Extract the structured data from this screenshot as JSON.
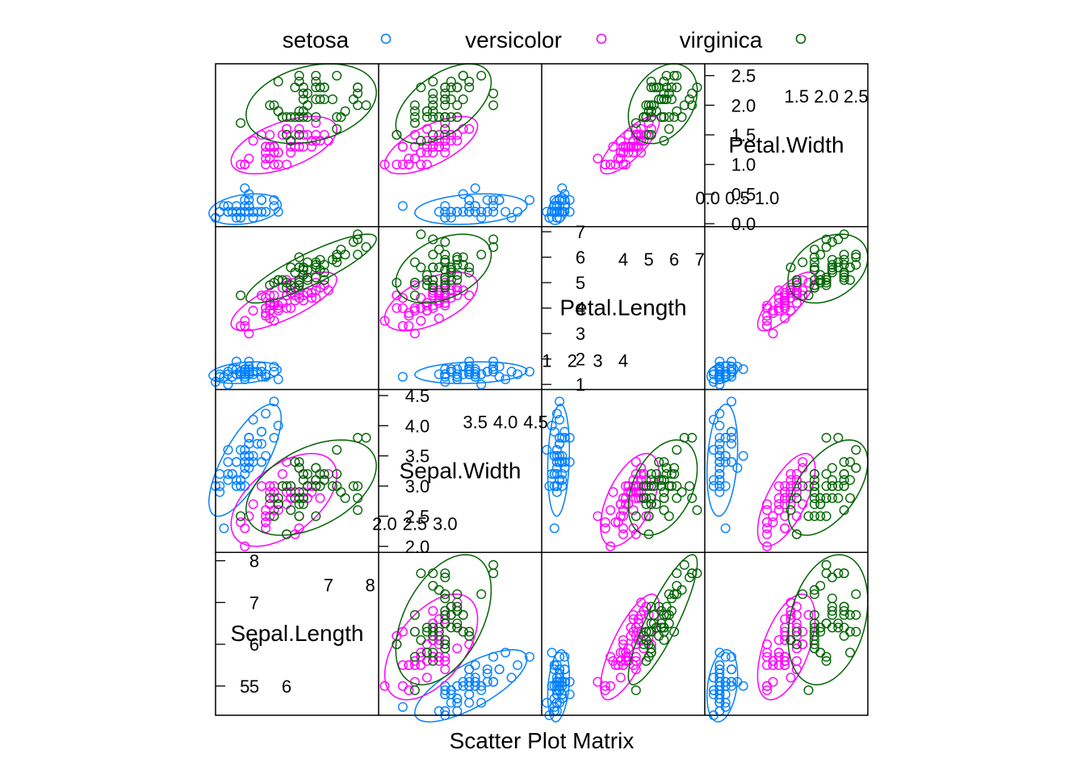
{
  "chart_data": {
    "type": "scatter",
    "subtype": "scatter-plot-matrix",
    "xlabel": "Scatter Plot Matrix",
    "legend_position": "top",
    "ellipses": true,
    "variables": [
      "Sepal.Length",
      "Sepal.Width",
      "Petal.Length",
      "Petal.Width"
    ],
    "diagonal": [
      {
        "name": "Sepal.Length",
        "range": [
          4.3,
          8.2
        ],
        "ticks_low": [
          "5",
          "6"
        ],
        "ticks_high": [
          "7",
          "8"
        ],
        "ticks_left": [
          "5",
          "6",
          "7",
          "8"
        ]
      },
      {
        "name": "Sepal.Width",
        "range": [
          1.9,
          4.6
        ],
        "ticks_low": [
          "2.0",
          "2.5",
          "3.0"
        ],
        "ticks_high": [
          "3.5",
          "4.0",
          "4.5"
        ],
        "ticks_left": [
          "2.0",
          "2.5",
          "3.0",
          "3.5",
          "4.0",
          "4.5"
        ]
      },
      {
        "name": "Petal.Length",
        "range": [
          0.8,
          7.2
        ],
        "ticks_low": [
          "1",
          "2",
          "3",
          "4"
        ],
        "ticks_high": [
          "4",
          "5",
          "6",
          "7"
        ],
        "ticks_left": [
          "1",
          "2",
          "3",
          "4",
          "5",
          "6",
          "7"
        ]
      },
      {
        "name": "Petal.Width",
        "range": [
          -0.05,
          2.7
        ],
        "ticks_low": [
          "0.0",
          "0.5",
          "1.0"
        ],
        "ticks_high": [
          "1.5",
          "2.0",
          "2.5"
        ],
        "ticks_left": [
          "0.0",
          "0.5",
          "1.0",
          "1.5",
          "2.0",
          "2.5"
        ]
      }
    ],
    "legend": [
      {
        "label": "setosa",
        "color": "#0080ff"
      },
      {
        "label": "versicolor",
        "color": "#ff00ff"
      },
      {
        "label": "virginica",
        "color": "#006400"
      }
    ],
    "series": [
      {
        "name": "setosa",
        "color": "#0080ff",
        "points": [
          [
            5.1,
            3.5,
            1.4,
            0.2
          ],
          [
            4.9,
            3.0,
            1.4,
            0.2
          ],
          [
            4.7,
            3.2,
            1.3,
            0.2
          ],
          [
            4.6,
            3.1,
            1.5,
            0.2
          ],
          [
            5.0,
            3.6,
            1.4,
            0.2
          ],
          [
            5.4,
            3.9,
            1.7,
            0.4
          ],
          [
            4.6,
            3.4,
            1.4,
            0.3
          ],
          [
            5.0,
            3.4,
            1.5,
            0.2
          ],
          [
            4.4,
            2.9,
            1.4,
            0.2
          ],
          [
            4.9,
            3.1,
            1.5,
            0.1
          ],
          [
            5.4,
            3.7,
            1.5,
            0.2
          ],
          [
            4.8,
            3.4,
            1.6,
            0.2
          ],
          [
            4.8,
            3.0,
            1.4,
            0.1
          ],
          [
            4.3,
            3.0,
            1.1,
            0.1
          ],
          [
            5.8,
            4.0,
            1.2,
            0.2
          ],
          [
            5.7,
            4.4,
            1.5,
            0.4
          ],
          [
            5.4,
            3.9,
            1.3,
            0.4
          ],
          [
            5.1,
            3.5,
            1.4,
            0.3
          ],
          [
            5.7,
            3.8,
            1.7,
            0.3
          ],
          [
            5.1,
            3.8,
            1.5,
            0.3
          ],
          [
            5.4,
            3.4,
            1.7,
            0.2
          ],
          [
            5.1,
            3.7,
            1.5,
            0.4
          ],
          [
            4.6,
            3.6,
            1.0,
            0.2
          ],
          [
            5.1,
            3.3,
            1.7,
            0.5
          ],
          [
            4.8,
            3.4,
            1.9,
            0.2
          ],
          [
            5.0,
            3.0,
            1.6,
            0.2
          ],
          [
            5.0,
            3.4,
            1.6,
            0.4
          ],
          [
            5.2,
            3.5,
            1.5,
            0.2
          ],
          [
            5.2,
            3.4,
            1.4,
            0.2
          ],
          [
            4.7,
            3.2,
            1.6,
            0.2
          ],
          [
            4.8,
            3.1,
            1.6,
            0.2
          ],
          [
            5.4,
            3.4,
            1.5,
            0.4
          ],
          [
            5.2,
            4.1,
            1.5,
            0.1
          ],
          [
            5.5,
            4.2,
            1.4,
            0.2
          ],
          [
            4.9,
            3.1,
            1.5,
            0.2
          ],
          [
            5.0,
            3.2,
            1.2,
            0.2
          ],
          [
            5.5,
            3.5,
            1.3,
            0.2
          ],
          [
            4.9,
            3.6,
            1.4,
            0.1
          ],
          [
            4.4,
            3.0,
            1.3,
            0.2
          ],
          [
            5.1,
            3.4,
            1.5,
            0.2
          ],
          [
            5.0,
            3.5,
            1.3,
            0.3
          ],
          [
            4.5,
            2.3,
            1.3,
            0.3
          ],
          [
            4.4,
            3.2,
            1.3,
            0.2
          ],
          [
            5.0,
            3.5,
            1.6,
            0.6
          ],
          [
            5.1,
            3.8,
            1.9,
            0.4
          ],
          [
            4.8,
            3.0,
            1.4,
            0.3
          ],
          [
            5.1,
            3.8,
            1.6,
            0.2
          ],
          [
            4.6,
            3.2,
            1.4,
            0.2
          ],
          [
            5.3,
            3.7,
            1.5,
            0.2
          ],
          [
            5.0,
            3.3,
            1.4,
            0.2
          ]
        ]
      },
      {
        "name": "versicolor",
        "color": "#ff00ff",
        "points": [
          [
            7.0,
            3.2,
            4.7,
            1.4
          ],
          [
            6.4,
            3.2,
            4.5,
            1.5
          ],
          [
            6.9,
            3.1,
            4.9,
            1.5
          ],
          [
            5.5,
            2.3,
            4.0,
            1.3
          ],
          [
            6.5,
            2.8,
            4.6,
            1.5
          ],
          [
            5.7,
            2.8,
            4.5,
            1.3
          ],
          [
            6.3,
            3.3,
            4.7,
            1.6
          ],
          [
            4.9,
            2.4,
            3.3,
            1.0
          ],
          [
            6.6,
            2.9,
            4.6,
            1.3
          ],
          [
            5.2,
            2.7,
            3.9,
            1.4
          ],
          [
            5.0,
            2.0,
            3.5,
            1.0
          ],
          [
            5.9,
            3.0,
            4.2,
            1.5
          ],
          [
            6.0,
            2.2,
            4.0,
            1.0
          ],
          [
            6.1,
            2.9,
            4.7,
            1.4
          ],
          [
            5.6,
            2.9,
            3.6,
            1.3
          ],
          [
            6.7,
            3.1,
            4.4,
            1.4
          ],
          [
            5.6,
            3.0,
            4.5,
            1.5
          ],
          [
            5.8,
            2.7,
            4.1,
            1.0
          ],
          [
            6.2,
            2.2,
            4.5,
            1.5
          ],
          [
            5.6,
            2.5,
            3.9,
            1.1
          ],
          [
            5.9,
            3.2,
            4.8,
            1.8
          ],
          [
            6.1,
            2.8,
            4.0,
            1.3
          ],
          [
            6.3,
            2.5,
            4.9,
            1.5
          ],
          [
            6.1,
            2.8,
            4.7,
            1.2
          ],
          [
            6.4,
            2.9,
            4.3,
            1.3
          ],
          [
            6.6,
            3.0,
            4.4,
            1.4
          ],
          [
            6.8,
            2.8,
            4.8,
            1.4
          ],
          [
            6.7,
            3.0,
            5.0,
            1.7
          ],
          [
            6.0,
            2.9,
            4.5,
            1.5
          ],
          [
            5.7,
            2.6,
            3.5,
            1.0
          ],
          [
            5.5,
            2.4,
            3.8,
            1.1
          ],
          [
            5.5,
            2.4,
            3.7,
            1.0
          ],
          [
            5.8,
            2.7,
            3.9,
            1.2
          ],
          [
            6.0,
            2.7,
            5.1,
            1.6
          ],
          [
            5.4,
            3.0,
            4.5,
            1.5
          ],
          [
            6.0,
            3.4,
            4.5,
            1.6
          ],
          [
            6.7,
            3.1,
            4.7,
            1.5
          ],
          [
            6.3,
            2.3,
            4.4,
            1.3
          ],
          [
            5.6,
            3.0,
            4.1,
            1.3
          ],
          [
            5.5,
            2.5,
            4.0,
            1.3
          ],
          [
            5.5,
            2.6,
            4.4,
            1.2
          ],
          [
            6.1,
            3.0,
            4.6,
            1.4
          ],
          [
            5.8,
            2.6,
            4.0,
            1.2
          ],
          [
            5.0,
            2.3,
            3.3,
            1.0
          ],
          [
            5.6,
            2.7,
            4.2,
            1.3
          ],
          [
            5.7,
            3.0,
            4.2,
            1.2
          ],
          [
            5.7,
            2.9,
            4.2,
            1.3
          ],
          [
            6.2,
            2.9,
            4.3,
            1.3
          ],
          [
            5.1,
            2.5,
            3.0,
            1.1
          ],
          [
            5.7,
            2.8,
            4.1,
            1.3
          ]
        ]
      },
      {
        "name": "virginica",
        "color": "#006400",
        "points": [
          [
            6.3,
            3.3,
            6.0,
            2.5
          ],
          [
            5.8,
            2.7,
            5.1,
            1.9
          ],
          [
            7.1,
            3.0,
            5.9,
            2.1
          ],
          [
            6.3,
            2.9,
            5.6,
            1.8
          ],
          [
            6.5,
            3.0,
            5.8,
            2.2
          ],
          [
            7.6,
            3.0,
            6.6,
            2.1
          ],
          [
            4.9,
            2.5,
            4.5,
            1.7
          ],
          [
            7.3,
            2.9,
            6.3,
            1.8
          ],
          [
            6.7,
            2.5,
            5.8,
            1.8
          ],
          [
            7.2,
            3.6,
            6.1,
            2.5
          ],
          [
            6.5,
            3.2,
            5.1,
            2.0
          ],
          [
            6.4,
            2.7,
            5.3,
            1.9
          ],
          [
            6.8,
            3.0,
            5.5,
            2.1
          ],
          [
            5.7,
            2.5,
            5.0,
            2.0
          ],
          [
            5.8,
            2.8,
            5.1,
            2.4
          ],
          [
            6.4,
            3.2,
            5.3,
            2.3
          ],
          [
            6.5,
            3.0,
            5.5,
            1.8
          ],
          [
            7.7,
            3.8,
            6.7,
            2.2
          ],
          [
            7.7,
            2.6,
            6.9,
            2.3
          ],
          [
            6.0,
            2.2,
            5.0,
            1.5
          ],
          [
            6.9,
            3.2,
            5.7,
            2.3
          ],
          [
            5.6,
            2.8,
            4.9,
            2.0
          ],
          [
            7.7,
            2.8,
            6.7,
            2.0
          ],
          [
            6.3,
            2.7,
            4.9,
            1.8
          ],
          [
            6.7,
            3.3,
            5.7,
            2.1
          ],
          [
            7.2,
            3.2,
            6.0,
            1.8
          ],
          [
            6.2,
            2.8,
            4.8,
            1.8
          ],
          [
            6.1,
            3.0,
            4.9,
            1.8
          ],
          [
            6.4,
            2.8,
            5.6,
            2.1
          ],
          [
            7.2,
            3.0,
            5.8,
            1.6
          ],
          [
            7.4,
            2.8,
            6.1,
            1.9
          ],
          [
            7.9,
            3.8,
            6.4,
            2.0
          ],
          [
            6.4,
            2.8,
            5.6,
            2.2
          ],
          [
            6.3,
            2.8,
            5.1,
            1.5
          ],
          [
            6.1,
            2.6,
            5.6,
            1.4
          ],
          [
            7.7,
            3.0,
            6.1,
            2.3
          ],
          [
            6.3,
            3.4,
            5.6,
            2.4
          ],
          [
            6.4,
            3.1,
            5.5,
            1.8
          ],
          [
            6.0,
            3.0,
            4.8,
            1.8
          ],
          [
            6.9,
            3.1,
            5.4,
            2.1
          ],
          [
            6.7,
            3.1,
            5.6,
            2.4
          ],
          [
            6.9,
            3.1,
            5.1,
            2.3
          ],
          [
            5.8,
            2.7,
            5.1,
            1.9
          ],
          [
            6.8,
            3.2,
            5.9,
            2.3
          ],
          [
            6.7,
            3.3,
            5.7,
            2.5
          ],
          [
            6.7,
            3.0,
            5.2,
            2.3
          ],
          [
            6.3,
            2.5,
            5.0,
            1.9
          ],
          [
            6.5,
            3.0,
            5.2,
            2.0
          ],
          [
            6.2,
            3.4,
            5.4,
            2.3
          ],
          [
            5.9,
            3.0,
            5.1,
            1.8
          ]
        ]
      }
    ]
  }
}
